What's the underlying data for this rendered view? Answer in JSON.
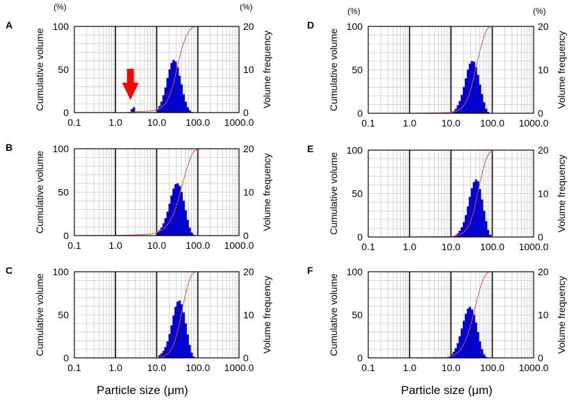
{
  "figure": {
    "x_axis_title": "Particle size (μm)",
    "left_axis_unit": "(%)",
    "right_axis_unit": "(%)",
    "colors": {
      "bars": "#0000dd",
      "bar_edge": "#00008a",
      "cumulative_line": "#e05050",
      "arrow": "#ff0000",
      "grid": "#c8c8c8"
    }
  },
  "chart_data": [
    {
      "panel": "A",
      "type": "bar",
      "xscale": "log",
      "xlim": [
        0.1,
        1000
      ],
      "xticks": [
        "0.1",
        "1.0",
        "10.0",
        "100.0",
        "1000.0"
      ],
      "ylabel_left": "Cumulative volume",
      "ylim_left": [
        0,
        100
      ],
      "yticks_left": [
        "0",
        "50",
        "100"
      ],
      "ylabel_right": "Volume frequency",
      "ylim_right": [
        0,
        20
      ],
      "yticks_right": [
        "0",
        "10",
        "20"
      ],
      "annotation": "arrow",
      "series": [
        {
          "kind": "bar",
          "x": [
            2.5,
            2.8,
            10.5,
            11.7,
            13.1,
            14.7,
            16.4,
            18.4,
            20.6,
            23.0,
            25.8,
            28.8,
            32.3,
            36.1,
            40.4,
            45.2,
            50.6,
            56.6,
            63.4,
            71.0
          ],
          "values": [
            0.8,
            1.2,
            0.6,
            1.5,
            2.5,
            4.0,
            5.8,
            8.0,
            10.0,
            11.5,
            12.2,
            11.8,
            10.5,
            8.5,
            6.5,
            4.2,
            2.5,
            1.2,
            0.5,
            0.1
          ]
        },
        {
          "kind": "line",
          "x": [
            0.1,
            2.0,
            3.0,
            8.0,
            12,
            16,
            20,
            25,
            30,
            35,
            40,
            50,
            60,
            70,
            80,
            90
          ],
          "values": [
            0,
            0,
            1,
            2,
            5,
            10,
            18,
            32,
            48,
            62,
            73,
            87,
            94,
            98,
            99.5,
            100
          ]
        }
      ]
    },
    {
      "panel": "B",
      "type": "bar",
      "xscale": "log",
      "xlim": [
        0.1,
        1000
      ],
      "xticks": [
        "0.1",
        "1.0",
        "10.0",
        "100.0",
        "1000.0"
      ],
      "ylabel_left": "Cumulative volume",
      "ylim_left": [
        0,
        100
      ],
      "yticks_left": [
        "0",
        "50",
        "100"
      ],
      "ylabel_right": "Volume frequency",
      "ylim_right": [
        0,
        20
      ],
      "yticks_right": [
        "0",
        "10",
        "20"
      ],
      "series": [
        {
          "kind": "bar",
          "x": [
            10.5,
            11.7,
            13.1,
            14.7,
            16.4,
            18.4,
            20.6,
            23.0,
            25.8,
            28.8,
            32.3,
            36.1,
            40.4,
            45.2,
            50.6,
            56.6,
            63.4,
            71.0,
            79.0
          ],
          "values": [
            0.8,
            1.2,
            1.8,
            2.8,
            4.0,
            5.5,
            7.3,
            9.2,
            10.8,
            11.8,
            12.0,
            11.4,
            10.0,
            8.0,
            5.8,
            3.6,
            1.8,
            0.7,
            0.2
          ]
        },
        {
          "kind": "line",
          "x": [
            0.1,
            1.0,
            3.0,
            6.0,
            10,
            15,
            20,
            25,
            30,
            35,
            40,
            50,
            60,
            70,
            80,
            100,
            120,
            1000
          ],
          "values": [
            0,
            0.2,
            0.8,
            1.5,
            3,
            8,
            15,
            24,
            34,
            45,
            55,
            72,
            84,
            92,
            97,
            99.5,
            100,
            100
          ]
        }
      ]
    },
    {
      "panel": "C",
      "type": "bar",
      "xscale": "log",
      "xlim": [
        0.1,
        1000
      ],
      "xticks": [
        "0.1",
        "1.0",
        "10.0",
        "100.0",
        "1000.0"
      ],
      "ylabel_left": "Cumulative volume",
      "ylim_left": [
        0,
        100
      ],
      "yticks_left": [
        "0",
        "50",
        "100"
      ],
      "ylabel_right": "Volume frequency",
      "ylim_right": [
        0,
        20
      ],
      "yticks_right": [
        "0",
        "10",
        "20"
      ],
      "series": [
        {
          "kind": "bar",
          "x": [
            11.7,
            13.1,
            14.7,
            16.4,
            18.4,
            20.6,
            23.0,
            25.8,
            28.8,
            32.3,
            36.1,
            40.4,
            45.2,
            50.6,
            56.6,
            63.4,
            71.0,
            79.0
          ],
          "values": [
            0.6,
            1.0,
            1.6,
            2.5,
            3.8,
            5.5,
            7.5,
            9.8,
            11.8,
            13.0,
            13.3,
            12.4,
            10.5,
            8.0,
            5.4,
            3.0,
            1.2,
            0.3
          ]
        },
        {
          "kind": "line",
          "x": [
            0.1,
            10,
            15,
            20,
            25,
            30,
            35,
            40,
            45,
            50,
            60,
            70,
            80,
            90
          ],
          "values": [
            0,
            0,
            2,
            6,
            14,
            25,
            38,
            52,
            64,
            74,
            88,
            96,
            99,
            100
          ]
        }
      ]
    },
    {
      "panel": "D",
      "type": "bar",
      "xscale": "log",
      "xlim": [
        0.1,
        1000
      ],
      "xticks": [
        "0.1",
        "1.0",
        "10.0",
        "100.0",
        "1000.0"
      ],
      "ylabel_left": "Cumulative volume",
      "ylim_left": [
        0,
        100
      ],
      "yticks_left": [
        "0",
        "50",
        "100"
      ],
      "ylabel_right": "Volume frequency",
      "ylim_right": [
        0,
        20
      ],
      "yticks_right": [
        "0",
        "10",
        "20"
      ],
      "series": [
        {
          "kind": "bar",
          "x": [
            11.7,
            13.1,
            14.7,
            16.4,
            18.4,
            20.6,
            23.0,
            25.8,
            28.8,
            32.3,
            36.1,
            40.4,
            45.2,
            50.6,
            56.6,
            63.4,
            71.0,
            79.0
          ],
          "values": [
            0.5,
            1.0,
            1.8,
            2.8,
            4.2,
            6.0,
            8.0,
            10.0,
            11.4,
            12.0,
            11.8,
            10.6,
            8.8,
            6.6,
            4.4,
            2.5,
            1.0,
            0.3
          ]
        },
        {
          "kind": "line",
          "x": [
            0.1,
            1.0,
            5.0,
            10,
            15,
            20,
            25,
            30,
            35,
            40,
            50,
            60,
            70,
            80,
            90,
            1000
          ],
          "values": [
            0,
            0,
            0.5,
            1,
            3,
            8,
            16,
            27,
            40,
            52,
            72,
            85,
            94,
            98,
            100,
            100
          ]
        }
      ]
    },
    {
      "panel": "E",
      "type": "bar",
      "xscale": "log",
      "xlim": [
        0.1,
        1000
      ],
      "xticks": [
        "0.1",
        "1.0",
        "10.0",
        "100.0",
        "1000.0"
      ],
      "ylabel_left": "Cumulative volume",
      "ylim_left": [
        0,
        100
      ],
      "yticks_left": [
        "0",
        "50",
        "100"
      ],
      "ylabel_right": "Volume frequency",
      "ylim_right": [
        0,
        20
      ],
      "yticks_right": [
        "0",
        "10",
        "20"
      ],
      "series": [
        {
          "kind": "bar",
          "x": [
            13.1,
            14.7,
            16.4,
            18.4,
            20.6,
            23.0,
            25.8,
            28.8,
            32.3,
            36.1,
            40.4,
            45.2,
            50.6,
            56.6,
            63.4,
            71.0,
            79.0,
            89.0
          ],
          "values": [
            0.4,
            0.8,
            1.4,
            2.2,
            3.4,
            5.0,
            7.0,
            9.2,
            11.2,
            12.6,
            13.2,
            12.8,
            11.0,
            8.6,
            6.0,
            3.6,
            1.6,
            0.5
          ]
        },
        {
          "kind": "line",
          "x": [
            0.1,
            1.0,
            10,
            15,
            20,
            25,
            30,
            35,
            40,
            45,
            50,
            60,
            70,
            80,
            90,
            110,
            1000
          ],
          "values": [
            0,
            0,
            0.5,
            2,
            5,
            10,
            18,
            28,
            40,
            52,
            62,
            78,
            89,
            95,
            98,
            100,
            100
          ]
        }
      ]
    },
    {
      "panel": "F",
      "type": "bar",
      "xscale": "log",
      "xlim": [
        0.1,
        1000
      ],
      "xticks": [
        "0.1",
        "1.0",
        "10.0",
        "100.0",
        "1000.0"
      ],
      "ylabel_left": "Cumulative volume",
      "ylim_left": [
        0,
        100
      ],
      "yticks_left": [
        "0",
        "50",
        "100"
      ],
      "ylabel_right": "Volume frequency",
      "ylim_right": [
        0,
        20
      ],
      "yticks_right": [
        "0",
        "10",
        "20"
      ],
      "series": [
        {
          "kind": "bar",
          "x": [
            9.3,
            10.5,
            11.7,
            13.1,
            14.7,
            16.4,
            18.4,
            20.6,
            23.0,
            25.8,
            28.8,
            32.3,
            36.1,
            40.4,
            45.2,
            50.6,
            56.6,
            63.4,
            71.0
          ],
          "values": [
            0.3,
            0.8,
            1.4,
            2.2,
            3.4,
            5.0,
            6.8,
            8.6,
            10.2,
            11.4,
            11.8,
            11.2,
            10.0,
            8.2,
            6.0,
            3.8,
            2.0,
            0.8,
            0.2
          ]
        },
        {
          "kind": "line",
          "x": [
            0.1,
            1.0,
            8.0,
            12,
            16,
            20,
            25,
            30,
            35,
            40,
            50,
            60,
            70,
            80,
            90,
            1000
          ],
          "values": [
            0,
            0,
            0.5,
            3,
            8,
            15,
            26,
            38,
            50,
            62,
            80,
            91,
            97,
            99.5,
            100,
            100
          ]
        }
      ]
    }
  ]
}
